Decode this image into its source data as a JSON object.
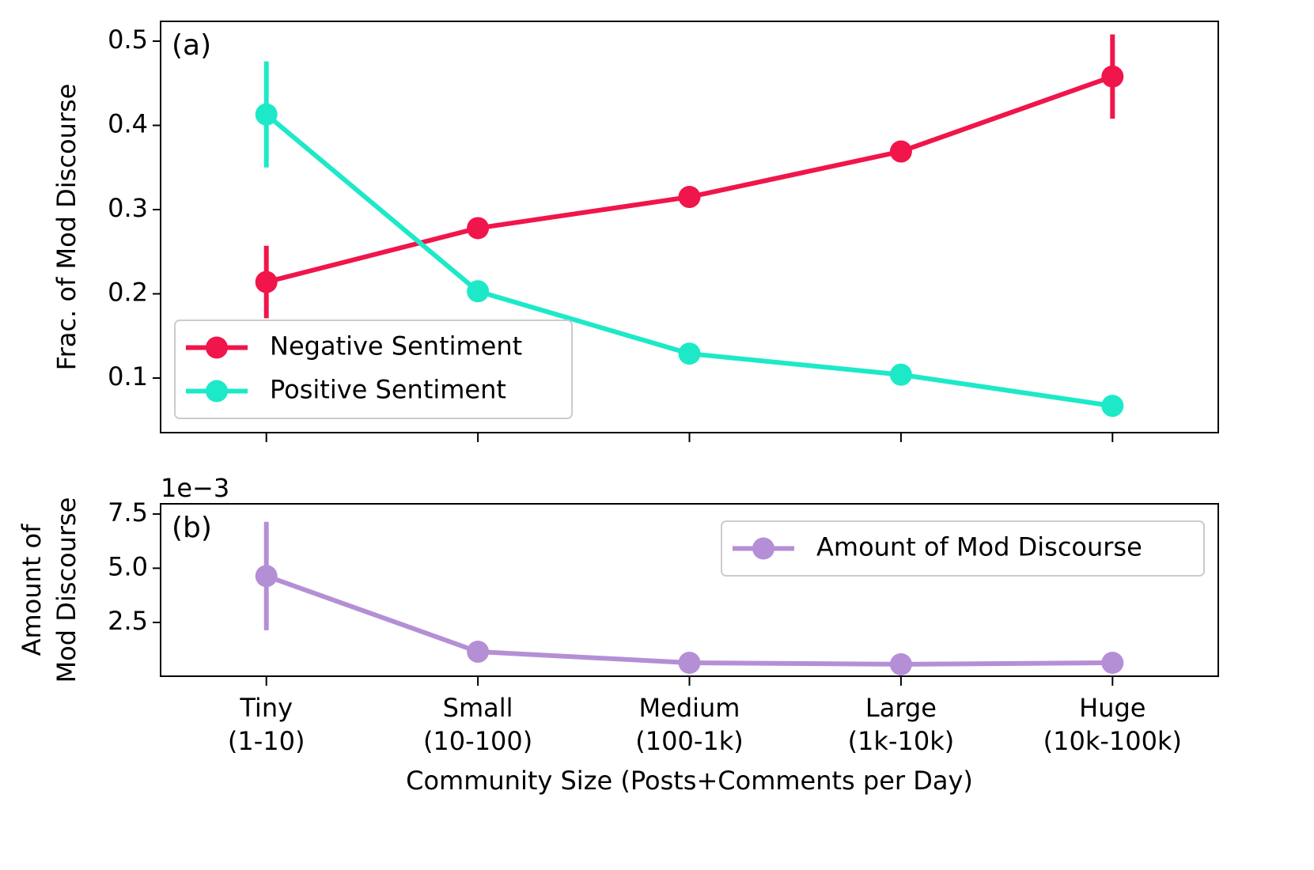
{
  "chart_data": [
    {
      "type": "line",
      "annotation": "(a)",
      "ylabel": "Frac. of Mod Discourse",
      "ylim": [
        0.0352,
        0.5235
      ],
      "yticks": [
        0.1,
        0.2,
        0.3,
        0.4,
        0.5
      ],
      "legend": "lower left",
      "series": [
        {
          "name": "Negative Sentiment",
          "color": "#f0154a",
          "values": [
            0.214,
            0.278,
            0.315,
            0.369,
            0.458
          ],
          "errors": [
            0.043,
            0.006,
            0.005,
            0.01,
            0.05
          ]
        },
        {
          "name": "Positive Sentiment",
          "color": "#1de9c8",
          "values": [
            0.413,
            0.203,
            0.129,
            0.104,
            0.067
          ],
          "errors": [
            0.063,
            0.006,
            0.004,
            0.004,
            0.008
          ]
        }
      ]
    },
    {
      "type": "line",
      "annotation": "(b)",
      "ylabel": [
        "Amount of",
        "Mod Discourse"
      ],
      "offset_label": "1e−3",
      "xlabel": "Community Size (Posts+Comments per Day)",
      "categories": [
        [
          "Tiny",
          "(1-10)"
        ],
        [
          "Small",
          "(10-100)"
        ],
        [
          "Medium",
          "(100-1k)"
        ],
        [
          "Large",
          "(1k-10k)"
        ],
        [
          "Huge",
          "(10k-100k)"
        ]
      ],
      "ylim": [
        0.02,
        7.97
      ],
      "yticks": [
        2.5,
        {
          "value": 5,
          "label": "5.0"
        },
        7.5
      ],
      "legend": "upper right",
      "series": [
        {
          "name": "Amount of Mod Discourse",
          "color": "#b48fd6",
          "values": [
            4.64,
            1.15,
            0.64,
            0.57,
            0.64
          ],
          "errors": [
            2.5,
            0.1,
            0.05,
            0.05,
            0.05
          ]
        }
      ]
    }
  ]
}
